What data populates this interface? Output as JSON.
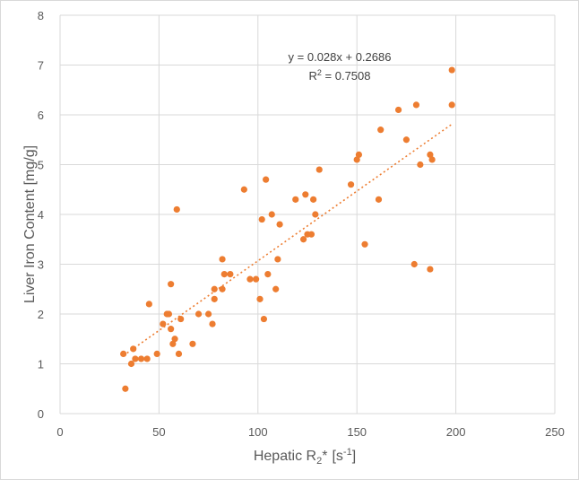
{
  "chart_data": {
    "type": "scatter",
    "title": "",
    "xlabel_main": "Hepatic R",
    "xlabel_sub": "2",
    "xlabel_star": "*",
    "xlabel_unit_open": "[s",
    "xlabel_unit_sup": "-1",
    "xlabel_unit_close": "]",
    "ylabel": "Liver Iron Content [mg/g]",
    "xlim": [
      0,
      250
    ],
    "ylim": [
      0,
      8
    ],
    "xticks": [
      0,
      50,
      100,
      150,
      200,
      250
    ],
    "yticks": [
      0,
      1,
      2,
      3,
      4,
      5,
      6,
      7,
      8
    ],
    "grid": true,
    "trendline": {
      "type": "linear",
      "slope": 0.028,
      "intercept": 0.2686,
      "x_range": [
        32,
        198
      ],
      "equation_label": "y = 0.028x + 0.2686",
      "r2_prefix": "R",
      "r2_sup": "2",
      "r2_value": " = 0.7508"
    },
    "color": "#ed7d31",
    "points": [
      {
        "x": 32,
        "y": 1.2
      },
      {
        "x": 33,
        "y": 0.5
      },
      {
        "x": 36,
        "y": 1.0
      },
      {
        "x": 37,
        "y": 1.3
      },
      {
        "x": 38,
        "y": 1.1
      },
      {
        "x": 41,
        "y": 1.1
      },
      {
        "x": 44,
        "y": 1.1
      },
      {
        "x": 45,
        "y": 2.2
      },
      {
        "x": 49,
        "y": 1.2
      },
      {
        "x": 52,
        "y": 1.8
      },
      {
        "x": 54,
        "y": 2.0
      },
      {
        "x": 55,
        "y": 2.0
      },
      {
        "x": 56,
        "y": 1.7
      },
      {
        "x": 56,
        "y": 2.6
      },
      {
        "x": 57,
        "y": 1.4
      },
      {
        "x": 58,
        "y": 1.5
      },
      {
        "x": 59,
        "y": 4.1
      },
      {
        "x": 60,
        "y": 1.2
      },
      {
        "x": 61,
        "y": 1.9
      },
      {
        "x": 67,
        "y": 1.4
      },
      {
        "x": 70,
        "y": 2.0
      },
      {
        "x": 75,
        "y": 2.0
      },
      {
        "x": 77,
        "y": 1.8
      },
      {
        "x": 78,
        "y": 2.3
      },
      {
        "x": 78,
        "y": 2.5
      },
      {
        "x": 82,
        "y": 2.5
      },
      {
        "x": 82,
        "y": 3.1
      },
      {
        "x": 83,
        "y": 2.8
      },
      {
        "x": 86,
        "y": 2.8
      },
      {
        "x": 93,
        "y": 4.5
      },
      {
        "x": 96,
        "y": 2.7
      },
      {
        "x": 99,
        "y": 2.7
      },
      {
        "x": 101,
        "y": 2.3
      },
      {
        "x": 102,
        "y": 3.9
      },
      {
        "x": 103,
        "y": 1.9
      },
      {
        "x": 104,
        "y": 4.7
      },
      {
        "x": 105,
        "y": 2.8
      },
      {
        "x": 107,
        "y": 4.0
      },
      {
        "x": 109,
        "y": 2.5
      },
      {
        "x": 110,
        "y": 3.1
      },
      {
        "x": 111,
        "y": 3.8
      },
      {
        "x": 119,
        "y": 4.3
      },
      {
        "x": 123,
        "y": 3.5
      },
      {
        "x": 124,
        "y": 4.4
      },
      {
        "x": 125,
        "y": 3.6
      },
      {
        "x": 127,
        "y": 3.6
      },
      {
        "x": 128,
        "y": 4.3
      },
      {
        "x": 129,
        "y": 4.0
      },
      {
        "x": 131,
        "y": 4.9
      },
      {
        "x": 147,
        "y": 4.6
      },
      {
        "x": 150,
        "y": 5.1
      },
      {
        "x": 151,
        "y": 5.2
      },
      {
        "x": 154,
        "y": 3.4
      },
      {
        "x": 161,
        "y": 4.3
      },
      {
        "x": 162,
        "y": 5.7
      },
      {
        "x": 171,
        "y": 6.1
      },
      {
        "x": 175,
        "y": 5.5
      },
      {
        "x": 179,
        "y": 3.0
      },
      {
        "x": 180,
        "y": 6.2
      },
      {
        "x": 182,
        "y": 5.0
      },
      {
        "x": 187,
        "y": 2.9
      },
      {
        "x": 187,
        "y": 5.2
      },
      {
        "x": 188,
        "y": 5.1
      },
      {
        "x": 198,
        "y": 6.9
      },
      {
        "x": 198,
        "y": 6.2
      }
    ]
  }
}
